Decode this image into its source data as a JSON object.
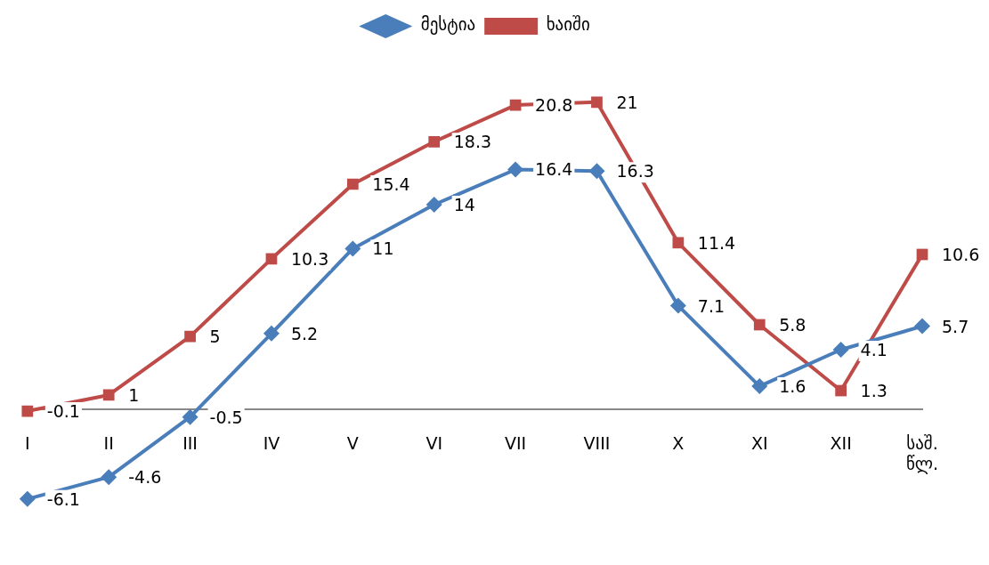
{
  "chart_data": {
    "type": "line",
    "categories": [
      "I",
      "II",
      "III",
      "IV",
      "V",
      "VI",
      "VII",
      "VIII",
      "X",
      "XI",
      "XII",
      "საშ. წლ."
    ],
    "series": [
      {
        "name": "მესტია",
        "color": "#4a7ebb",
        "marker": "diamond",
        "values": [
          -6.1,
          -4.6,
          -0.5,
          5.2,
          11,
          14,
          16.4,
          16.3,
          7.1,
          1.6,
          4.1,
          5.7
        ]
      },
      {
        "name": "ხაიში",
        "color": "#be4b48",
        "marker": "square",
        "values": [
          -0.1,
          1,
          5,
          10.3,
          15.4,
          18.3,
          20.8,
          21,
          11.4,
          5.8,
          1.3,
          10.6
        ]
      }
    ],
    "data_labels": true,
    "legend": "top",
    "grid": false,
    "tick_labels": "x",
    "line_style": "solid"
  }
}
